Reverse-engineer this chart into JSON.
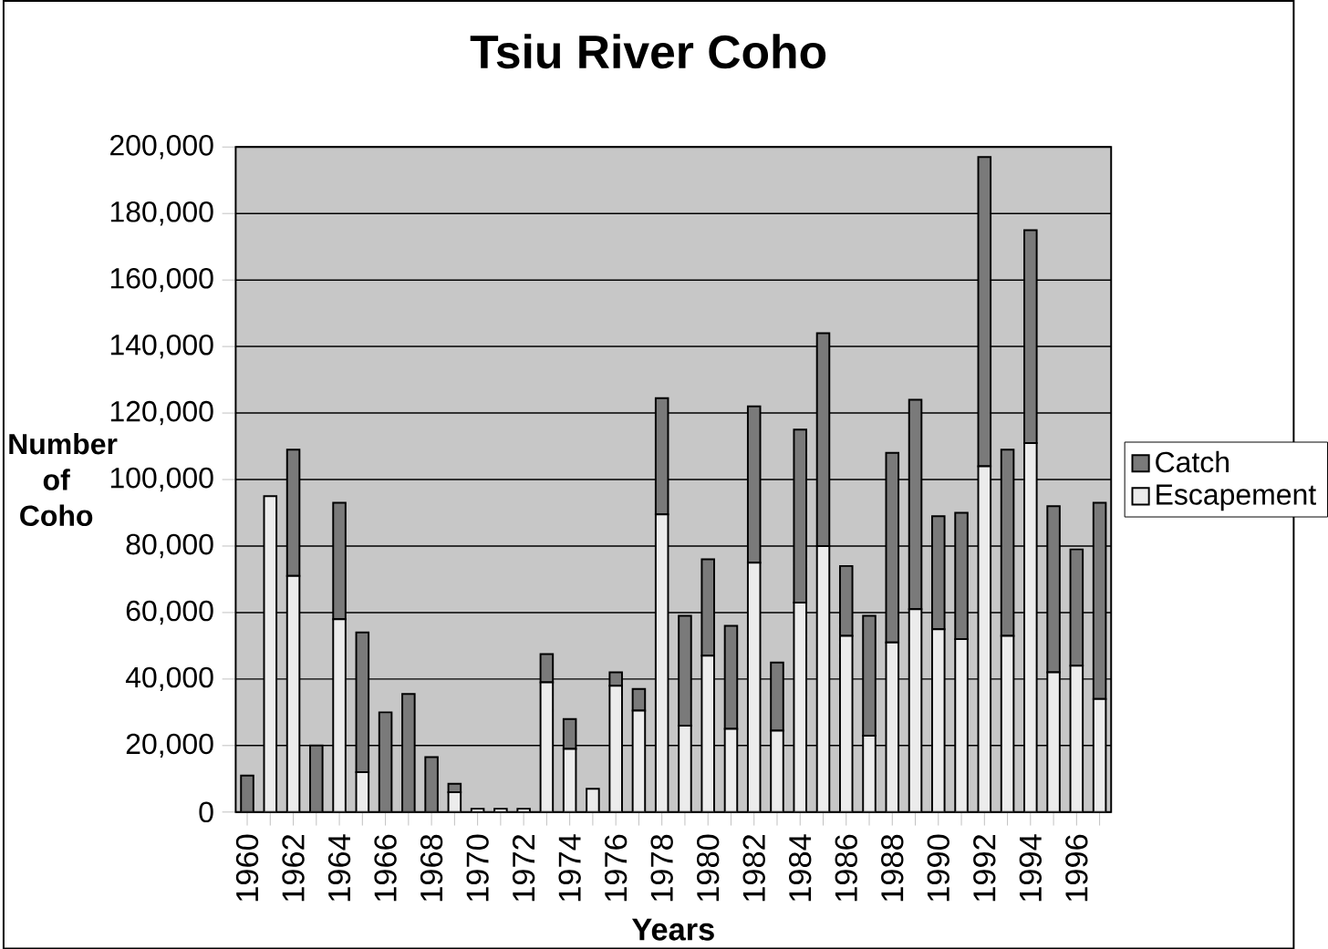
{
  "chart_data": {
    "type": "bar",
    "title": "Tsiu River Coho",
    "xlabel": "Years",
    "ylabel": "Number of Coho",
    "categories": [
      "1960",
      null,
      "1962",
      null,
      "1964",
      null,
      "1966",
      null,
      "1968",
      null,
      "1970",
      null,
      "1972",
      null,
      "1974",
      null,
      "1976",
      null,
      "1978",
      null,
      "1980",
      null,
      "1982",
      null,
      "1984",
      null,
      "1986",
      null,
      "1988",
      null,
      "1990",
      null,
      "1992",
      null,
      "1994",
      null,
      "1996",
      null
    ],
    "stacked": true,
    "series": [
      {
        "name": "Escapement",
        "color": "#ececec",
        "values": [
          0,
          95000,
          71000,
          0,
          58000,
          12000,
          0,
          0,
          0,
          6000,
          1000,
          1000,
          1000,
          39000,
          19000,
          7000,
          38000,
          30500,
          89500,
          26000,
          47000,
          25000,
          75000,
          24500,
          63000,
          80000,
          53000,
          23000,
          51000,
          61000,
          55000,
          52000,
          104000,
          53000,
          111000,
          42000,
          44000,
          34000
        ]
      },
      {
        "name": "Catch",
        "color": "#7a7a7a",
        "values": [
          11000,
          0,
          38000,
          20000,
          35000,
          42000,
          30000,
          35500,
          16500,
          2500,
          0,
          0,
          0,
          8500,
          9000,
          0,
          4000,
          6500,
          35000,
          33000,
          29000,
          31000,
          47000,
          20500,
          52000,
          64000,
          21000,
          36000,
          57000,
          63000,
          34000,
          38000,
          93000,
          56000,
          64000,
          50000,
          35000,
          59000
        ]
      }
    ],
    "ylim": [
      0,
      200000
    ],
    "yticks": [
      {
        "value": 0,
        "label": "0"
      },
      {
        "value": 20000,
        "label": "20,000"
      },
      {
        "value": 40000,
        "label": "40,000"
      },
      {
        "value": 60000,
        "label": "60,000"
      },
      {
        "value": 80000,
        "label": "80,000"
      },
      {
        "value": 100000,
        "label": "100,000"
      },
      {
        "value": 120000,
        "label": "120,000"
      },
      {
        "value": 140000,
        "label": "140,000"
      },
      {
        "value": 160000,
        "label": "160,000"
      },
      {
        "value": 180000,
        "label": "180,000"
      },
      {
        "value": 200000,
        "label": "200,000"
      }
    ],
    "grid": "y",
    "legend": "right"
  }
}
